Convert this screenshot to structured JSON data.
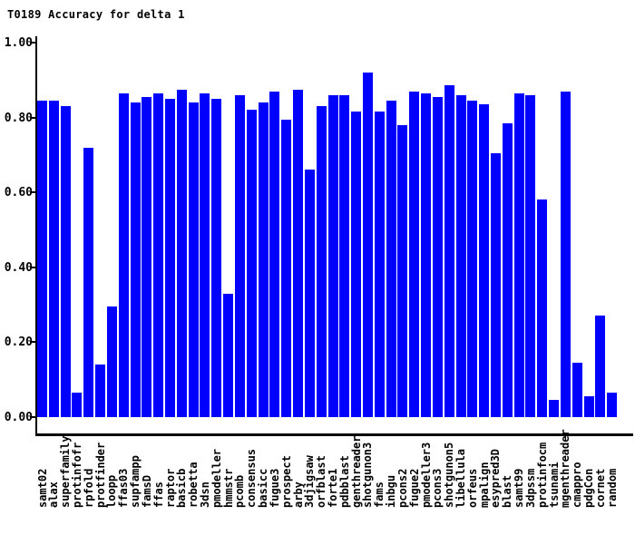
{
  "title": "T0189 Accuracy for delta 1",
  "colors": {
    "background": "#FFFFFF",
    "bar": "#0000FF",
    "axis": "#000000",
    "text": "#000000"
  },
  "chart_data": {
    "type": "bar",
    "title": "T0189 Accuracy for delta 1",
    "xlabel": "",
    "ylabel": "",
    "ylim": [
      0,
      1.0
    ],
    "grid": false,
    "legend": false,
    "bar_color": "#0000FF",
    "ytick_labels": [
      "0.00",
      "0.20",
      "0.40",
      "0.60",
      "0.80",
      "1.00"
    ],
    "yticks": [
      0.0,
      0.2,
      0.4,
      0.6,
      0.8,
      1.0
    ],
    "categories": [
      "samt02",
      "alax",
      "superfamily",
      "protinfofr",
      "rpfold",
      "protfinder",
      "loopp",
      "ffas03",
      "supfampp",
      "famsD",
      "ffas",
      "raptor",
      "basicb",
      "robetta",
      "3dsn",
      "pmodeller",
      "hmmstr",
      "pcomb",
      "consensus",
      "basicc",
      "fugue3",
      "prospect",
      "arby",
      "3djigsaw",
      "orfblast",
      "forte1",
      "pdbblast",
      "genthreader",
      "shotgunon3",
      "fams",
      "inbgu",
      "pcons2",
      "fugue2",
      "pmodeller3",
      "pcons3",
      "shotgunon5",
      "libellula",
      "orfeus",
      "mpalign",
      "esypred3D",
      "blast",
      "samt99",
      "3dpssm",
      "protinfocm",
      "tsunami",
      "mgenthreader",
      "cmappro",
      "pdgCon",
      "cornet",
      "random"
    ],
    "values": [
      0.845,
      0.845,
      0.83,
      0.065,
      0.72,
      0.14,
      0.295,
      0.865,
      0.84,
      0.855,
      0.865,
      0.85,
      0.875,
      0.84,
      0.865,
      0.85,
      0.33,
      0.86,
      0.82,
      0.84,
      0.87,
      0.795,
      0.875,
      0.66,
      0.83,
      0.86,
      0.86,
      0.815,
      0.92,
      0.815,
      0.845,
      0.78,
      0.87,
      0.865,
      0.855,
      0.885,
      0.86,
      0.845,
      0.835,
      0.705,
      0.785,
      0.865,
      0.86,
      0.58,
      0.045,
      0.87,
      0.145,
      0.055,
      0.27,
      0.065
    ]
  }
}
